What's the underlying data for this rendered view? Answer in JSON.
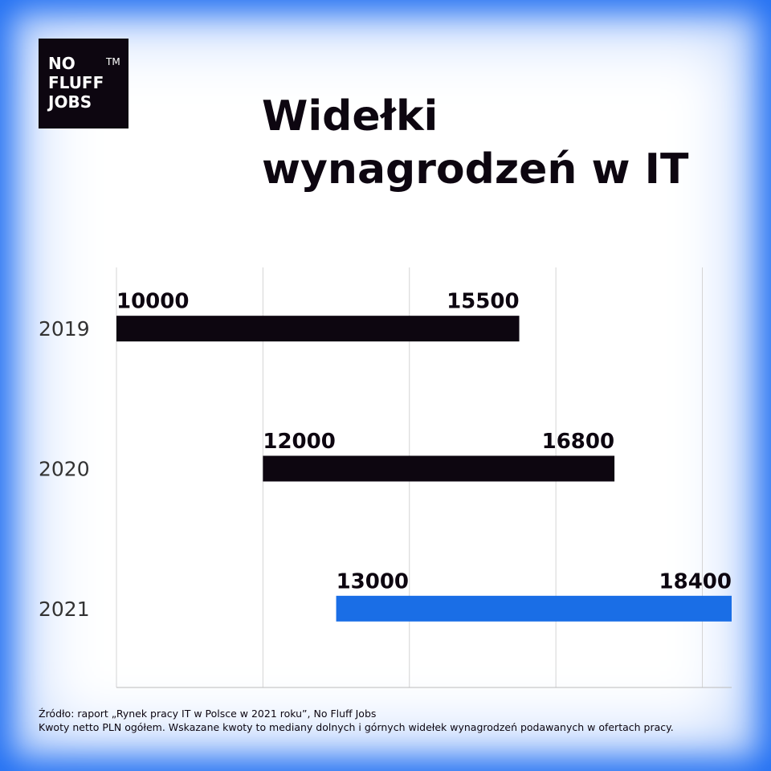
{
  "logo": {
    "lines": [
      "NO",
      "FLUFF",
      "JOBS"
    ],
    "trademark": "TM"
  },
  "chart_data": {
    "type": "range_bar",
    "title": [
      "Widełki",
      "wynagrodzeń w IT"
    ],
    "categories": [
      "2019",
      "2020",
      "2021"
    ],
    "start": [
      10000,
      12000,
      13000
    ],
    "end": [
      15500,
      16800,
      18400
    ],
    "colors": [
      "#0d0610",
      "#0d0610",
      "#1a6ee6"
    ],
    "xlim": [
      10000,
      18400
    ],
    "xticks": [
      10000,
      12000,
      14000,
      16000,
      18000
    ],
    "grid": true
  },
  "footer": [
    "Źródło: raport „Rynek pracy IT w Polsce w 2021 roku”, No Fluff Jobs",
    "Kwoty netto PLN ogółem. Wskazane kwoty to mediany dolnych i górnych widełek wynagrodzeń podawanych w ofertach pracy."
  ]
}
